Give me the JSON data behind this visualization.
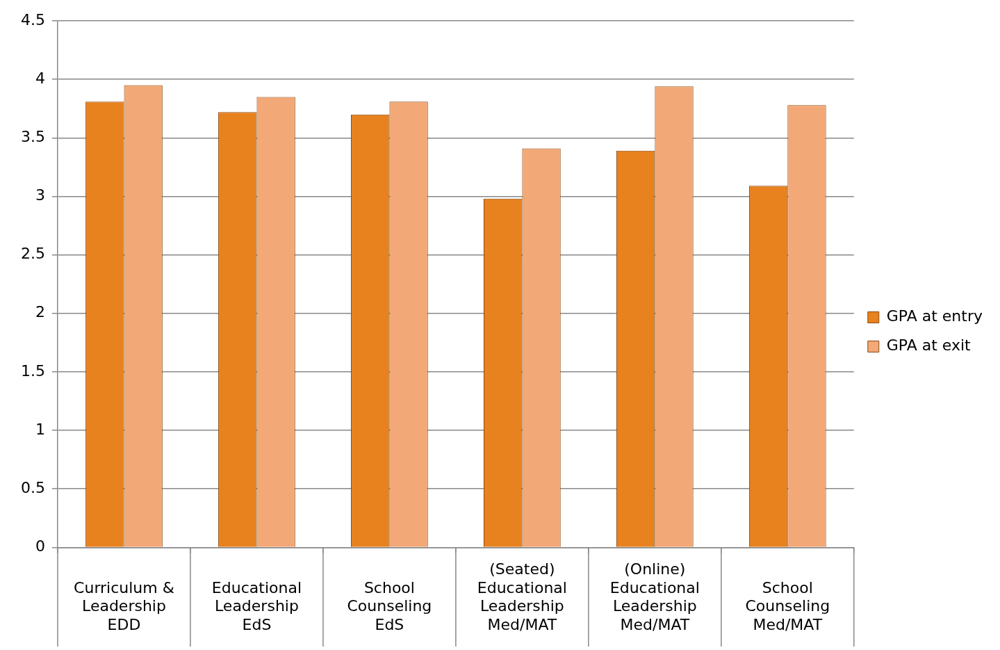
{
  "chart_data": {
    "type": "bar",
    "categories": [
      "Curriculum &\nLeadership\nEDD",
      "Educational\nLeadership\nEdS",
      "School\nCounseling\nEdS",
      "(Seated)\nEducational\nLeadership\nMed/MAT",
      "(Online)\nEducational\nLeadership\nMed/MAT",
      "School\nCounseling\nMed/MAT"
    ],
    "series": [
      {
        "name": "GPA at entry",
        "color": "#e8821f",
        "values": [
          3.81,
          3.72,
          3.7,
          2.98,
          3.39,
          3.09
        ]
      },
      {
        "name": "GPA at exit",
        "color": "#f2a877",
        "values": [
          3.95,
          3.85,
          3.81,
          3.41,
          3.94,
          3.78
        ]
      }
    ],
    "ylim": [
      0,
      4.5
    ],
    "yticks": [
      0,
      0.5,
      1,
      1.5,
      2,
      2.5,
      3,
      3.5,
      4,
      4.5
    ],
    "grid": "y",
    "legend": "right"
  }
}
